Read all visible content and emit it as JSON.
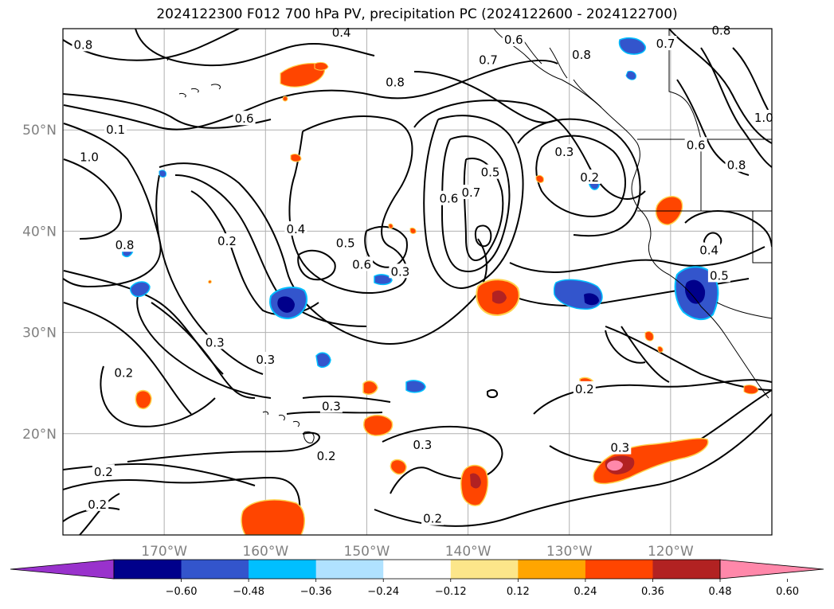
{
  "title": "2024122300 F012 700 hPa PV, precipitation PC (2024122600 - 2024122700)",
  "map": {
    "lon_range": [
      -180,
      -110
    ],
    "lat_range": [
      10,
      60
    ],
    "lon_ticks": [
      {
        "lon": -170,
        "label": "170°W"
      },
      {
        "lon": -160,
        "label": "160°W"
      },
      {
        "lon": -150,
        "label": "150°W"
      },
      {
        "lon": -140,
        "label": "140°W"
      },
      {
        "lon": -130,
        "label": "130°W"
      },
      {
        "lon": -120,
        "label": "120°W"
      }
    ],
    "lat_ticks": [
      {
        "lat": 20,
        "label": "20°N"
      },
      {
        "lat": 30,
        "label": "30°N"
      },
      {
        "lat": 40,
        "label": "40°N"
      },
      {
        "lat": 50,
        "label": "50°N"
      }
    ],
    "gridlines": true,
    "contour_labels": [
      {
        "lon": -178.0,
        "lat": 58.4,
        "text": "0.8"
      },
      {
        "lon": -152.5,
        "lat": 59.6,
        "text": "0.4"
      },
      {
        "lon": -147.2,
        "lat": 54.7,
        "text": "0.8"
      },
      {
        "lon": -138.0,
        "lat": 56.9,
        "text": "0.7"
      },
      {
        "lon": -135.5,
        "lat": 58.9,
        "text": "0.6"
      },
      {
        "lon": -128.8,
        "lat": 57.4,
        "text": "0.8"
      },
      {
        "lon": -115.0,
        "lat": 59.8,
        "text": "0.8"
      },
      {
        "lon": -120.5,
        "lat": 58.5,
        "text": "0.7"
      },
      {
        "lon": -117.5,
        "lat": 48.5,
        "text": "0.6"
      },
      {
        "lon": -113.5,
        "lat": 46.5,
        "text": "0.8"
      },
      {
        "lon": -110.8,
        "lat": 51.2,
        "text": "1.0"
      },
      {
        "lon": -174.8,
        "lat": 50.0,
        "text": "0.1"
      },
      {
        "lon": -177.4,
        "lat": 47.3,
        "text": "1.0"
      },
      {
        "lon": -162.1,
        "lat": 51.1,
        "text": "0.6"
      },
      {
        "lon": -130.5,
        "lat": 47.8,
        "text": "0.3"
      },
      {
        "lon": -128.0,
        "lat": 45.3,
        "text": "0.2"
      },
      {
        "lon": -173.9,
        "lat": 38.6,
        "text": "0.8"
      },
      {
        "lon": -163.8,
        "lat": 39.0,
        "text": "0.2"
      },
      {
        "lon": -157.0,
        "lat": 40.2,
        "text": "0.4"
      },
      {
        "lon": -152.1,
        "lat": 38.8,
        "text": "0.5"
      },
      {
        "lon": -150.5,
        "lat": 36.7,
        "text": "0.6"
      },
      {
        "lon": -146.7,
        "lat": 36.0,
        "text": "0.3"
      },
      {
        "lon": -141.9,
        "lat": 43.2,
        "text": "0.6"
      },
      {
        "lon": -139.7,
        "lat": 43.8,
        "text": "0.7"
      },
      {
        "lon": -137.8,
        "lat": 45.8,
        "text": "0.5"
      },
      {
        "lon": -116.2,
        "lat": 38.1,
        "text": "0.4"
      },
      {
        "lon": -115.2,
        "lat": 35.6,
        "text": "0.5"
      },
      {
        "lon": -165.0,
        "lat": 29.0,
        "text": "0.3"
      },
      {
        "lon": -160.0,
        "lat": 27.3,
        "text": "0.3"
      },
      {
        "lon": -174.0,
        "lat": 26.0,
        "text": "0.2"
      },
      {
        "lon": -153.5,
        "lat": 22.7,
        "text": "0.3"
      },
      {
        "lon": -154.0,
        "lat": 17.8,
        "text": "0.2"
      },
      {
        "lon": -144.5,
        "lat": 18.9,
        "text": "0.3"
      },
      {
        "lon": -128.5,
        "lat": 24.4,
        "text": "0.2"
      },
      {
        "lon": -125.0,
        "lat": 18.6,
        "text": "0.3"
      },
      {
        "lon": -176.0,
        "lat": 16.2,
        "text": "0.2"
      },
      {
        "lon": -176.6,
        "lat": 13.0,
        "text": "0.2"
      },
      {
        "lon": -143.5,
        "lat": 11.6,
        "text": "0.2"
      }
    ]
  },
  "colorbar": {
    "colors": [
      "#9932cc",
      "#00008b",
      "#3355cc",
      "#00bfff",
      "#b0e2ff",
      "#ffffff",
      "#fce68a",
      "#ffa500",
      "#ff4500",
      "#b22222",
      "#ff88aa"
    ],
    "boundaries": [
      -0.6,
      -0.48,
      -0.36,
      -0.24,
      -0.12,
      0.12,
      0.24,
      0.36,
      0.48,
      0.6
    ],
    "tick_labels": [
      "−0.60",
      "−0.48",
      "−0.36",
      "−0.24",
      "−0.12",
      "0.12",
      "0.24",
      "0.36",
      "0.48",
      "0.60"
    ]
  }
}
